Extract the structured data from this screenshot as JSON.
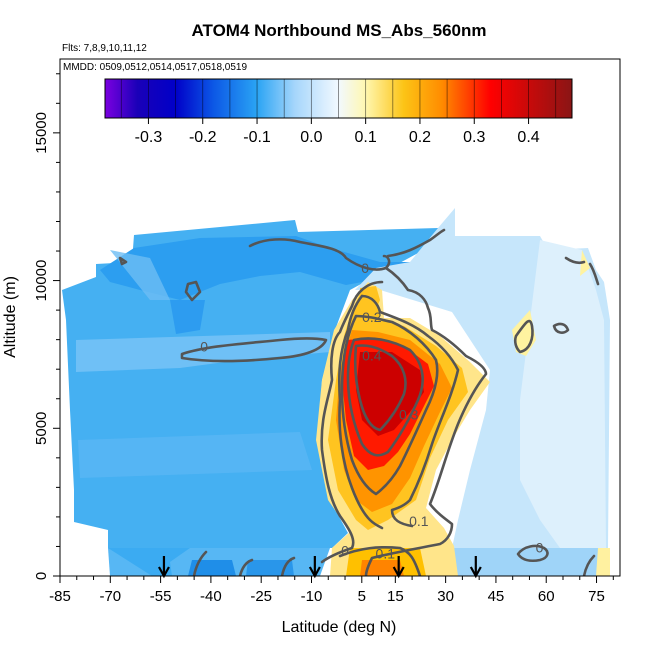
{
  "chart_data": {
    "type": "heatmap",
    "title": "ATOM4 Northbound MS_Abs_560nm",
    "subtitle_flights": "Flts: 7,8,9,10,11,12",
    "subtitle_dates": "MMDD: 0509,0512,0514,0517,0518,0519",
    "xlabel": "Latitude (deg N)",
    "ylabel": "Altitude (m)",
    "xlim": [
      -85,
      82
    ],
    "ylim": [
      0,
      17500
    ],
    "x_ticks": [
      -85,
      -70,
      -55,
      -40,
      -25,
      -10,
      5,
      15,
      30,
      45,
      60,
      75
    ],
    "x_tick_labels": [
      "-85",
      "-70",
      "-55",
      "-40",
      "-25",
      "-10",
      "5",
      "15",
      "30",
      "45",
      "60",
      "75"
    ],
    "y_ticks": [
      0,
      5000,
      10000,
      15000
    ],
    "y_tick_labels": [
      "0",
      "5000",
      "10000",
      "15000"
    ],
    "colorbar": {
      "range": [
        -0.38,
        0.48
      ],
      "ticks": [
        -0.3,
        -0.2,
        -0.1,
        0.0,
        0.1,
        0.2,
        0.3,
        0.4
      ],
      "tick_labels": [
        "-0.3",
        "-0.2",
        "-0.1",
        "0.0",
        "0.1",
        "0.2",
        "0.3",
        "0.4"
      ],
      "stops": [
        {
          "v": -0.38,
          "c": "#7b00e0"
        },
        {
          "v": -0.32,
          "c": "#1a00b8"
        },
        {
          "v": -0.25,
          "c": "#0000c8"
        },
        {
          "v": -0.18,
          "c": "#0c58e6"
        },
        {
          "v": -0.1,
          "c": "#2aa4f4"
        },
        {
          "v": -0.03,
          "c": "#a6d6fb"
        },
        {
          "v": 0.05,
          "c": "#f2f9ff"
        },
        {
          "v": 0.1,
          "c": "#fff7b0"
        },
        {
          "v": 0.17,
          "c": "#fcc416"
        },
        {
          "v": 0.24,
          "c": "#ff8c00"
        },
        {
          "v": 0.33,
          "c": "#ff0000"
        },
        {
          "v": 0.48,
          "c": "#8a1515"
        }
      ]
    },
    "contour_labels": [
      {
        "text": "0",
        "lat": -42,
        "alt": 7600
      },
      {
        "text": "0",
        "lat": 6,
        "alt": 10250
      },
      {
        "text": "0.2",
        "lat": 8,
        "alt": 8600
      },
      {
        "text": "0.4",
        "lat": 8,
        "alt": 7300
      },
      {
        "text": "0.3",
        "lat": 19,
        "alt": 5300
      },
      {
        "text": "0.1",
        "lat": 22,
        "alt": 1700
      },
      {
        "text": "0",
        "lat": 0,
        "alt": 700
      },
      {
        "text": "0.1",
        "lat": 12,
        "alt": 600
      },
      {
        "text": "0",
        "lat": 58,
        "alt": 800
      }
    ],
    "arrows_lat": [
      -54,
      -9,
      16,
      39
    ],
    "field_note": "Sampled latitude-altitude cross section: mostly -0.1 to 0.0 south of 0N and in the upper troposphere, a plume of 0.2-0.45 centered near 15N at 4000-8500 m, and values near 0.0-0.1 north of 35N.",
    "field_cells": [
      {
        "lat": -80,
        "alt": 9750,
        "v": -0.06
      },
      {
        "lat": -70,
        "alt": 9750,
        "v": -0.07
      },
      {
        "lat": -55,
        "alt": 9750,
        "v": -0.06
      },
      {
        "lat": -45,
        "alt": 9750,
        "v": -0.09
      },
      {
        "lat": -35,
        "alt": 9750,
        "v": -0.08
      },
      {
        "lat": -25,
        "alt": 9750,
        "v": -0.08
      },
      {
        "lat": -15,
        "alt": 9750,
        "v": -0.07
      },
      {
        "lat": -5,
        "alt": 9750,
        "v": -0.05
      },
      {
        "lat": -45,
        "alt": 11250,
        "v": -0.07
      },
      {
        "lat": -20,
        "alt": 11250,
        "v": -0.07
      },
      {
        "lat": 5,
        "alt": 11250,
        "v": -0.04
      },
      {
        "lat": 10,
        "alt": 9750,
        "v": 0.15
      },
      {
        "lat": 12,
        "alt": 7250,
        "v": 0.42
      },
      {
        "lat": 15,
        "alt": 6250,
        "v": 0.42
      },
      {
        "lat": 18,
        "alt": 5250,
        "v": 0.32
      },
      {
        "lat": 15,
        "alt": 3250,
        "v": 0.24
      },
      {
        "lat": 15,
        "alt": 750,
        "v": 0.22
      },
      {
        "lat": 30,
        "alt": 5750,
        "v": 0.18
      },
      {
        "lat": 40,
        "alt": 5750,
        "v": 0.05
      },
      {
        "lat": 50,
        "alt": 7750,
        "v": 0.02
      },
      {
        "lat": 65,
        "alt": 6250,
        "v": 0.02
      },
      {
        "lat": 70,
        "alt": 9750,
        "v": 0.03
      },
      {
        "lat": -65,
        "alt": 4750,
        "v": -0.06
      },
      {
        "lat": -40,
        "alt": 3250,
        "v": -0.05
      },
      {
        "lat": -20,
        "alt": 2250,
        "v": -0.03
      },
      {
        "lat": -30,
        "alt": 7250,
        "v": -0.01
      }
    ]
  }
}
